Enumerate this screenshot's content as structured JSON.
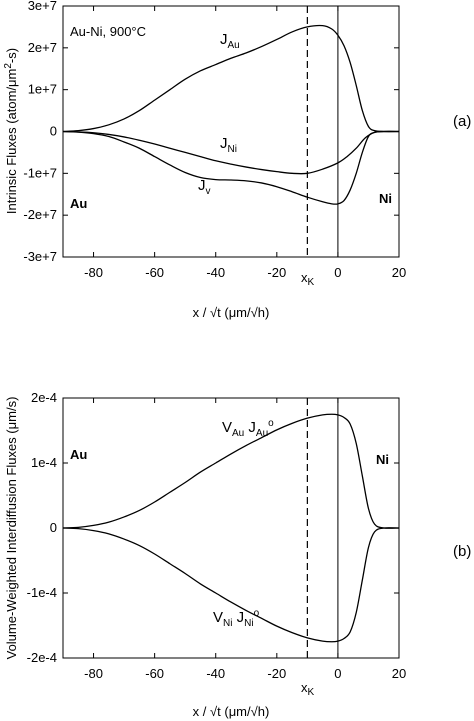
{
  "chart_data": [
    {
      "type": "line",
      "panel_label": "(a)",
      "annotation": "Au-Ni, 900°C",
      "ylabel_parts": [
        "Intrinsic Fluxes (atom/μm",
        "2",
        "-s)"
      ],
      "xlabel": "x / √t (μm/√h)",
      "xlim": [
        -90,
        20
      ],
      "ylim": [
        -30000000,
        30000000
      ],
      "xticks": [
        -80,
        -60,
        -40,
        -20,
        0,
        20
      ],
      "xtick_labels": [
        "-80",
        "-60",
        "-40",
        "-20",
        "0",
        "20"
      ],
      "yticks": [
        -30000000,
        -20000000,
        -10000000,
        0,
        10000000,
        20000000,
        30000000
      ],
      "ytick_labels": [
        "-3e+7",
        "-2e+7",
        "-1e+7",
        "0",
        "1e+7",
        "2e+7",
        "3e+7"
      ],
      "left_region_label": "Au",
      "right_region_label": "Ni",
      "kirkendall_x": -10,
      "kirkendall_label": "x",
      "kirkendall_sub": "K",
      "series": [
        {
          "label_main": "J",
          "label_sub": "Au",
          "x": [
            -90,
            -85,
            -80,
            -75,
            -70,
            -65,
            -60,
            -55,
            -50,
            -45,
            -40,
            -35,
            -30,
            -25,
            -20,
            -15,
            -10,
            -5,
            -2,
            0,
            2,
            4,
            6,
            8,
            10,
            12,
            15,
            20
          ],
          "y": [
            0,
            200000,
            700000,
            1600000,
            3000000,
            5000000,
            7500000,
            10000000,
            12500000,
            14500000,
            16000000,
            17500000,
            18800000,
            20300000,
            22000000,
            23800000,
            25000000,
            25300000,
            24500000,
            23000000,
            20500000,
            16500000,
            11000000,
            5000000,
            1200000,
            200000,
            0,
            0
          ]
        },
        {
          "label_main": "J",
          "label_sub": "Ni",
          "x": [
            -90,
            -85,
            -80,
            -75,
            -70,
            -65,
            -60,
            -55,
            -50,
            -45,
            -40,
            -35,
            -30,
            -25,
            -20,
            -15,
            -10,
            -5,
            0,
            3,
            6,
            9,
            12,
            15,
            20
          ],
          "y": [
            0,
            -100000,
            -300000,
            -700000,
            -1300000,
            -2100000,
            -3000000,
            -4000000,
            -5000000,
            -6000000,
            -7000000,
            -7800000,
            -8500000,
            -9100000,
            -9600000,
            -10000000,
            -10000000,
            -9000000,
            -7500000,
            -6000000,
            -4000000,
            -1500000,
            -200000,
            0,
            0
          ]
        },
        {
          "label_main": "J",
          "label_sub": "v",
          "x": [
            -90,
            -85,
            -80,
            -75,
            -70,
            -65,
            -60,
            -55,
            -50,
            -45,
            -40,
            -35,
            -30,
            -25,
            -20,
            -15,
            -10,
            -5,
            -2,
            0,
            2,
            4,
            6,
            8,
            10,
            12,
            15,
            20
          ],
          "y": [
            0,
            -150000,
            -500000,
            -1200000,
            -2500000,
            -4000000,
            -6000000,
            -8000000,
            -9800000,
            -11000000,
            -11500000,
            -11600000,
            -11800000,
            -12300000,
            -13200000,
            -14400000,
            -15700000,
            -16800000,
            -17300000,
            -17300000,
            -16500000,
            -14000000,
            -10000000,
            -5000000,
            -1200000,
            -200000,
            0,
            0
          ]
        }
      ]
    },
    {
      "type": "line",
      "panel_label": "(b)",
      "ylabel": "Volume-Weighted Interdiffusion Fluxes (μm/s)",
      "xlabel": "x / √t (μm/√h)",
      "xlim": [
        -90,
        20
      ],
      "ylim": [
        -0.0002,
        0.0002
      ],
      "xticks": [
        -80,
        -60,
        -40,
        -20,
        0,
        20
      ],
      "xtick_labels": [
        "-80",
        "-60",
        "-40",
        "-20",
        "0",
        "20"
      ],
      "yticks": [
        -0.0002,
        -0.0001,
        0,
        0.0001,
        0.0002
      ],
      "ytick_labels": [
        "-2e-4",
        "-1e-4",
        "0",
        "1e-4",
        "2e-4"
      ],
      "left_region_label": "Au",
      "right_region_label": "Ni",
      "kirkendall_x": -10,
      "kirkendall_label": "x",
      "kirkendall_sub": "K",
      "series": [
        {
          "label_parts": [
            "V",
            "Au",
            " J",
            "Au",
            "o"
          ],
          "x": [
            -90,
            -85,
            -80,
            -75,
            -70,
            -65,
            -60,
            -55,
            -50,
            -45,
            -40,
            -35,
            -30,
            -25,
            -20,
            -15,
            -10,
            -5,
            -2,
            0,
            2,
            4,
            6,
            8,
            10,
            12,
            15,
            20
          ],
          "y": [
            0,
            1e-06,
            4e-06,
            9e-06,
            1.7e-05,
            2.7e-05,
            4e-05,
            5.5e-05,
            7e-05,
            8.6e-05,
            0.0001,
            0.000114,
            0.000127,
            0.000139,
            0.000151,
            0.000161,
            0.000169,
            0.000174,
            0.000175,
            0.000174,
            0.00017,
            0.00016,
            0.00013,
            8e-05,
            3e-05,
            6e-06,
            0,
            0
          ]
        },
        {
          "label_parts": [
            "V",
            "Ni",
            " J",
            "Ni",
            "o"
          ],
          "x": [
            -90,
            -85,
            -80,
            -75,
            -70,
            -65,
            -60,
            -55,
            -50,
            -45,
            -40,
            -35,
            -30,
            -25,
            -20,
            -15,
            -10,
            -5,
            -2,
            0,
            2,
            4,
            6,
            8,
            10,
            12,
            15,
            20
          ],
          "y": [
            0,
            -1e-06,
            -4e-06,
            -9e-06,
            -1.7e-05,
            -2.7e-05,
            -4e-05,
            -5.5e-05,
            -7e-05,
            -8.6e-05,
            -0.0001,
            -0.000114,
            -0.000127,
            -0.000139,
            -0.000151,
            -0.000161,
            -0.000169,
            -0.000174,
            -0.000175,
            -0.000174,
            -0.00017,
            -0.00016,
            -0.00013,
            -8e-05,
            -3e-05,
            -6e-06,
            0,
            0
          ]
        }
      ]
    }
  ]
}
